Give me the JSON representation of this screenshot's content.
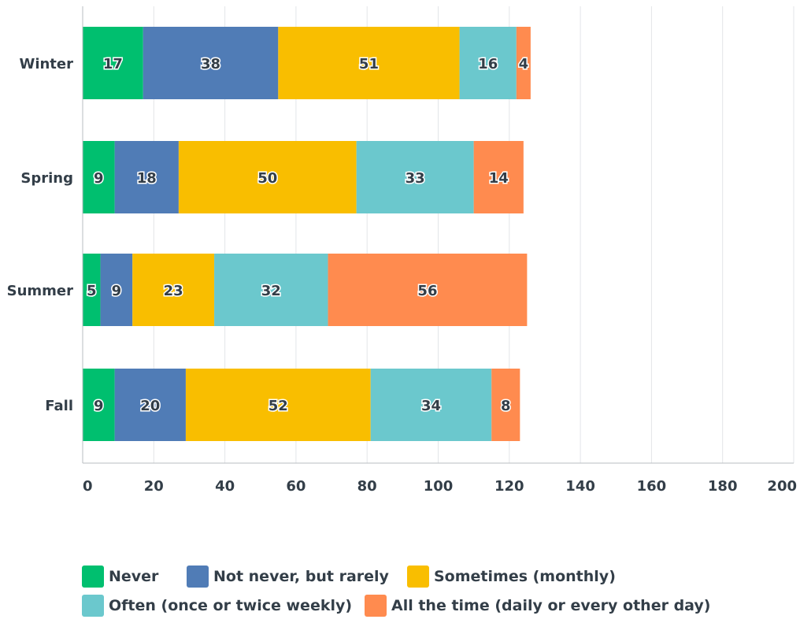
{
  "chart_data": {
    "type": "bar",
    "orientation": "horizontal",
    "stacked": true,
    "categories": [
      "Winter",
      "Spring",
      "Summer",
      "Fall"
    ],
    "series": [
      {
        "name": "Never",
        "color": "#00bf6f",
        "values": [
          17,
          9,
          5,
          9
        ]
      },
      {
        "name": "Not never, but rarely",
        "color": "#507cb6",
        "values": [
          38,
          18,
          9,
          20
        ]
      },
      {
        "name": "Sometimes (monthly)",
        "color": "#f9be00",
        "values": [
          51,
          50,
          23,
          52
        ]
      },
      {
        "name": "Often (once or twice weekly)",
        "color": "#6bc8cd",
        "values": [
          16,
          33,
          32,
          34
        ]
      },
      {
        "name": "All the time (daily or every other day)",
        "color": "#ff8b4f",
        "values": [
          4,
          14,
          56,
          8
        ]
      }
    ],
    "xlim": [
      0,
      200
    ],
    "xticks": [
      0,
      20,
      40,
      60,
      80,
      100,
      120,
      140,
      160,
      180,
      200
    ],
    "grid": true,
    "data_labels": true,
    "legend_position": "bottom"
  }
}
